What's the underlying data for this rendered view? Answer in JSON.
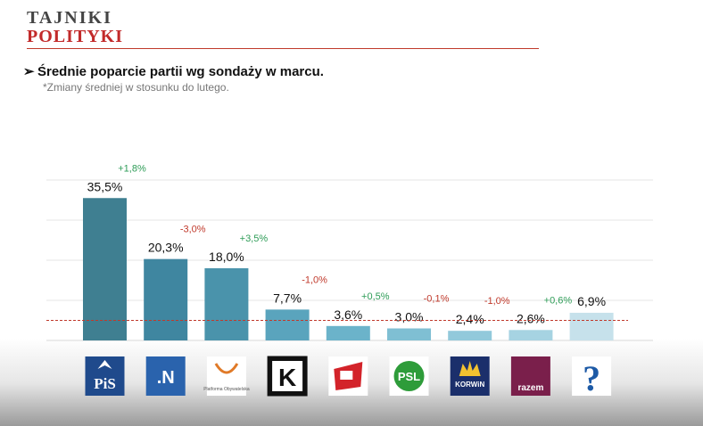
{
  "header": {
    "logo_line1": "TAJNIKI",
    "logo_line2": "POLITYKI",
    "title": "Średnie poparcie  partii  wg sondaży  w marcu.",
    "subtitle": "*Zmiany średniej w stosunku do lutego."
  },
  "colors": {
    "brand_red": "#c22a2a",
    "positive_change": "#2e9c57",
    "negative_change": "#c0392b"
  },
  "chart_data": {
    "type": "bar",
    "categories": [
      "PiS",
      ".N",
      "Platforma Obywatelska",
      "Kukiz'15",
      "SLD",
      "PSL",
      "KORWiN",
      "Razem",
      "?"
    ],
    "values": [
      35.5,
      20.3,
      18.0,
      7.7,
      3.6,
      3.0,
      2.4,
      2.6,
      6.9
    ],
    "value_labels": [
      "35,5%",
      "20,3%",
      "18,0%",
      "7,7%",
      "3,6%",
      "3,0%",
      "2,4%",
      "2,6%",
      "6,9%"
    ],
    "changes": [
      "+1,8%",
      "-3,0%",
      "+3,5%",
      "-1,0%",
      "+0,5%",
      "-0,1%",
      "-1,0%",
      "+0,6%",
      ""
    ],
    "bar_colors": [
      "#3f7f91",
      "#3f86a0",
      "#4a93ab",
      "#5aa4bd",
      "#6bb3ca",
      "#7fbfd3",
      "#92c9db",
      "#a6d3e2",
      "#c6e1eb"
    ],
    "threshold": 5,
    "ylim": [
      0,
      40
    ],
    "grid": true,
    "logos": [
      {
        "name": "pis-logo",
        "text": "PiS",
        "bg": "#1f4a8c",
        "fg": "#ffffff"
      },
      {
        "name": "nowoczesna-logo",
        "text": ".N",
        "bg": "#2a63ad",
        "fg": "#ffffff"
      },
      {
        "name": "platforma-logo",
        "text": "Platforma Obywatelska",
        "bg": "#ffffff",
        "fg": "#e07a28"
      },
      {
        "name": "kukiz-logo",
        "text": "K",
        "bg": "#111111",
        "fg": "#ffffff"
      },
      {
        "name": "sld-logo",
        "text": "",
        "bg": "#ffffff",
        "fg": "#d3232a"
      },
      {
        "name": "psl-logo",
        "text": "PSL",
        "bg": "#ffffff",
        "fg": "#2e9c3a"
      },
      {
        "name": "korwin-logo",
        "text": "KORWiN",
        "bg": "#1b2f6b",
        "fg": "#ffffff"
      },
      {
        "name": "razem-logo",
        "text": "razem",
        "bg": "#7a1f4b",
        "fg": "#ffffff"
      },
      {
        "name": "question-logo",
        "text": "?",
        "bg": "#ffffff",
        "fg": "#1d5aa6"
      }
    ]
  }
}
